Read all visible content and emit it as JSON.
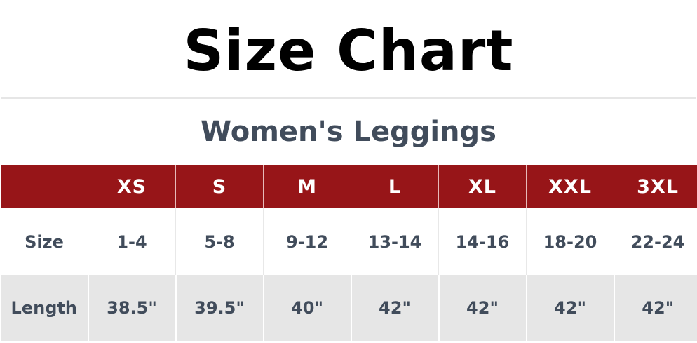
{
  "title": "Size Chart",
  "subtitle": "Women's Leggings",
  "colors": {
    "header_bg": "#971518",
    "text": "#414c5b",
    "stripe": "#e6e6e6"
  },
  "table": {
    "header": [
      "",
      "XS",
      "S",
      "M",
      "L",
      "XL",
      "XXL",
      "3XL"
    ],
    "rows": [
      {
        "label": "Size",
        "values": [
          "1-4",
          "5-8",
          "9-12",
          "13-14",
          "14-16",
          "18-20",
          "22-24"
        ]
      },
      {
        "label": "Length",
        "values": [
          "38.5\"",
          "39.5\"",
          "40\"",
          "42\"",
          "42\"",
          "42\"",
          "42\""
        ]
      }
    ]
  }
}
